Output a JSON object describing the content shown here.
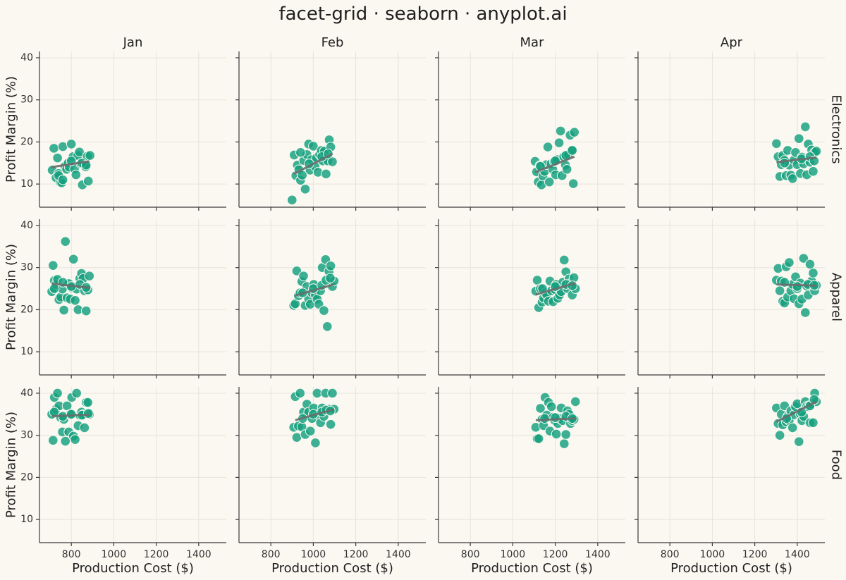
{
  "chart_data": {
    "type": "scatter",
    "title": "facet-grid · seaborn · anyplot.ai",
    "xlabel": "Production Cost ($)",
    "ylabel": "Profit Margin (%)",
    "xlim": [
      650,
      1530
    ],
    "ylim": [
      4.5,
      41.5
    ],
    "xticks": [
      800,
      1000,
      1200,
      1400
    ],
    "yticks": [
      10,
      20,
      30,
      40
    ],
    "grid": true,
    "columns": [
      "Jan",
      "Feb",
      "Mar",
      "Apr"
    ],
    "rows": [
      "Electronics",
      "Apparel",
      "Food"
    ],
    "point_color": "#14A07E",
    "trend_color": "#6B6B6B",
    "background": "#FAF8F1",
    "panels": [
      {
        "row": "Electronics",
        "col": "Jan",
        "x": [
          710,
          718,
          728,
          735,
          740,
          748,
          755,
          760,
          770,
          778,
          785,
          790,
          800,
          808,
          815,
          822,
          830,
          838,
          845,
          852,
          860,
          868,
          875,
          880,
          888,
          740,
          760,
          800,
          850,
          870
        ],
        "y": [
          13.3,
          18.5,
          11.5,
          16.2,
          12.5,
          10.4,
          10.3,
          18.9,
          14.2,
          13.5,
          15.0,
          14.0,
          19.5,
          16.5,
          13.6,
          12.2,
          16.8,
          17.6,
          14.8,
          9.8,
          14.5,
          14.1,
          16.6,
          10.7,
          16.8,
          12.0,
          11.0,
          15.5,
          15.0,
          14.5
        ],
        "trend": [
          [
            705,
            14.0
          ],
          [
            885,
            15.4
          ]
        ]
      },
      {
        "row": "Electronics",
        "col": "Feb",
        "x": [
          900,
          910,
          918,
          925,
          932,
          940,
          948,
          955,
          962,
          970,
          978,
          985,
          992,
          1000,
          1008,
          1015,
          1022,
          1030,
          1038,
          1045,
          1052,
          1060,
          1068,
          1075,
          1082,
          1090,
          940,
          980,
          1040,
          1070
        ],
        "y": [
          6.2,
          16.9,
          12.0,
          14.5,
          13.4,
          10.9,
          12.1,
          15.6,
          8.8,
          17.0,
          19.5,
          13.3,
          15.8,
          19.0,
          14.2,
          16.2,
          12.8,
          17.0,
          18.0,
          15.5,
          17.8,
          12.4,
          15.5,
          20.5,
          18.8,
          15.3,
          17.5,
          14.8,
          16.5,
          17.2
        ],
        "trend": [
          [
            908,
            12.4
          ],
          [
            1090,
            17.2
          ]
        ]
      },
      {
        "row": "Electronics",
        "col": "Mar",
        "x": [
          1105,
          1112,
          1120,
          1128,
          1135,
          1142,
          1150,
          1158,
          1165,
          1172,
          1180,
          1188,
          1195,
          1202,
          1210,
          1218,
          1225,
          1232,
          1240,
          1248,
          1255,
          1262,
          1270,
          1278,
          1285,
          1290,
          1130,
          1200,
          1250,
          1280
        ],
        "y": [
          15.4,
          12.9,
          10.5,
          14.4,
          9.8,
          11.9,
          13.0,
          14.6,
          18.8,
          10.5,
          14.8,
          13.5,
          15.3,
          12.2,
          15.8,
          19.8,
          22.6,
          12.0,
          16.5,
          14.5,
          13.5,
          17.0,
          21.6,
          18.0,
          10.1,
          22.3,
          14.2,
          15.5,
          16.8,
          18.0
        ],
        "trend": [
          [
            1105,
            12.8
          ],
          [
            1290,
            16.5
          ]
        ]
      },
      {
        "row": "Electronics",
        "col": "Apr",
        "x": [
          1302,
          1310,
          1318,
          1325,
          1332,
          1340,
          1348,
          1355,
          1362,
          1370,
          1378,
          1385,
          1392,
          1400,
          1408,
          1415,
          1422,
          1430,
          1438,
          1445,
          1452,
          1460,
          1468,
          1475,
          1482,
          1490,
          1340,
          1420,
          1460,
          1480
        ],
        "y": [
          19.6,
          16.5,
          11.8,
          14.6,
          16.8,
          15.6,
          12.0,
          18.0,
          14.5,
          12.1,
          11.3,
          15.7,
          17.5,
          14.6,
          20.8,
          12.5,
          16.4,
          14.8,
          23.6,
          12.2,
          19.5,
          15.2,
          18.1,
          13.0,
          17.5,
          17.8,
          15.0,
          16.0,
          16.5,
          15.5
        ],
        "trend": [
          [
            1302,
            15.2
          ],
          [
            1490,
            16.3
          ]
        ]
      },
      {
        "row": "Apparel",
        "col": "Jan",
        "x": [
          708,
          714,
          720,
          728,
          735,
          742,
          750,
          758,
          765,
          772,
          780,
          788,
          795,
          802,
          810,
          818,
          825,
          832,
          840,
          848,
          855,
          862,
          870,
          878,
          885,
          720,
          760,
          800,
          840,
          870
        ],
        "y": [
          24.3,
          30.5,
          26.9,
          26.0,
          27.2,
          22.4,
          23.0,
          24.9,
          19.9,
          36.2,
          22.8,
          26.2,
          22.5,
          25.2,
          32.0,
          22.2,
          24.9,
          20.0,
          27.4,
          28.6,
          27.4,
          24.5,
          19.7,
          24.7,
          28.0,
          25.0,
          26.5,
          25.5,
          26.0,
          25.3
        ],
        "trend": [
          [
            708,
            26.2
          ],
          [
            885,
            25.2
          ]
        ]
      },
      {
        "row": "Apparel",
        "col": "Feb",
        "x": [
          908,
          915,
          922,
          930,
          938,
          946,
          954,
          962,
          970,
          978,
          986,
          994,
          1002,
          1010,
          1018,
          1026,
          1034,
          1042,
          1050,
          1058,
          1066,
          1074,
          1082,
          1090,
          1098,
          950,
          1000,
          1040,
          1060,
          1080
        ],
        "y": [
          21.0,
          21.4,
          29.2,
          23.3,
          24.0,
          26.7,
          28.0,
          21.0,
          25.5,
          22.6,
          21.3,
          24.0,
          26.0,
          23.5,
          22.5,
          21.3,
          24.5,
          30.0,
          19.8,
          31.9,
          16.0,
          29.1,
          30.4,
          25.5,
          26.8,
          24.0,
          25.0,
          25.8,
          27.0,
          27.5
        ],
        "trend": [
          [
            912,
            23.3
          ],
          [
            1098,
            26.0
          ]
        ]
      },
      {
        "row": "Apparel",
        "col": "Mar",
        "x": [
          1108,
          1115,
          1122,
          1130,
          1138,
          1145,
          1152,
          1160,
          1168,
          1175,
          1182,
          1190,
          1198,
          1205,
          1212,
          1220,
          1228,
          1235,
          1242,
          1250,
          1258,
          1265,
          1272,
          1280,
          1288,
          1295,
          1140,
          1200,
          1250,
          1280
        ],
        "y": [
          24.4,
          27.0,
          20.5,
          25.0,
          21.8,
          22.8,
          24.0,
          23.5,
          22.0,
          26.8,
          24.5,
          21.9,
          24.8,
          26.0,
          22.7,
          23.5,
          24.3,
          26.5,
          31.8,
          29.0,
          25.0,
          27.3,
          26.2,
          23.5,
          27.6,
          25.0,
          25.0,
          25.5,
          26.0,
          25.7
        ],
        "trend": [
          [
            1108,
            23.6
          ],
          [
            1295,
            26.3
          ]
        ]
      },
      {
        "row": "Apparel",
        "col": "Apr",
        "x": [
          1302,
          1310,
          1318,
          1325,
          1332,
          1340,
          1348,
          1355,
          1362,
          1370,
          1378,
          1385,
          1392,
          1400,
          1408,
          1415,
          1422,
          1430,
          1438,
          1445,
          1452,
          1460,
          1468,
          1475,
          1482,
          1490,
          1340,
          1400,
          1450,
          1480
        ],
        "y": [
          27.0,
          29.8,
          24.5,
          26.8,
          22.0,
          21.6,
          30.2,
          23.0,
          31.2,
          24.5,
          26.0,
          22.6,
          27.8,
          25.0,
          21.4,
          26.3,
          22.5,
          32.2,
          19.3,
          25.6,
          23.5,
          30.8,
          26.8,
          28.7,
          24.5,
          25.8,
          26.5,
          25.5,
          26.0,
          25.8
        ],
        "trend": [
          [
            1302,
            26.0
          ],
          [
            1490,
            25.7
          ]
        ]
      },
      {
        "row": "Food",
        "col": "Jan",
        "x": [
          708,
          714,
          720,
          728,
          735,
          742,
          750,
          758,
          765,
          772,
          780,
          788,
          795,
          802,
          810,
          818,
          825,
          832,
          840,
          848,
          855,
          862,
          870,
          878,
          885,
          720,
          760,
          800,
          850,
          880
        ],
        "y": [
          35.0,
          28.8,
          39.0,
          36.2,
          40.0,
          37.0,
          34.2,
          30.8,
          33.8,
          28.6,
          37.0,
          30.8,
          35.0,
          39.0,
          29.8,
          29.0,
          40.0,
          32.3,
          34.8,
          35.5,
          34.9,
          31.8,
          37.8,
          37.8,
          35.0,
          35.5,
          34.5,
          35.0,
          34.8,
          35.2
        ],
        "trend": [
          [
            708,
            34.5
          ],
          [
            885,
            34.9
          ]
        ]
      },
      {
        "row": "Food",
        "col": "Feb",
        "x": [
          908,
          915,
          922,
          930,
          938,
          946,
          954,
          962,
          970,
          978,
          986,
          994,
          1002,
          1010,
          1018,
          1026,
          1034,
          1042,
          1050,
          1058,
          1066,
          1074,
          1082,
          1090,
          1098,
          950,
          1000,
          1040,
          1060,
          1080
        ],
        "y": [
          31.9,
          39.2,
          29.5,
          32.2,
          40.0,
          32.0,
          35.5,
          30.2,
          37.4,
          35.5,
          31.0,
          34.0,
          36.5,
          28.2,
          40.0,
          34.9,
          33.0,
          36.5,
          34.5,
          40.0,
          36.0,
          36.2,
          32.6,
          40.0,
          36.2,
          34.0,
          35.0,
          35.5,
          36.0,
          35.8
        ],
        "trend": [
          [
            915,
            33.6
          ],
          [
            1098,
            36.2
          ]
        ]
      },
      {
        "row": "Food",
        "col": "Mar",
        "x": [
          1108,
          1115,
          1122,
          1130,
          1138,
          1145,
          1152,
          1160,
          1168,
          1175,
          1182,
          1190,
          1198,
          1205,
          1212,
          1220,
          1228,
          1235,
          1242,
          1250,
          1258,
          1265,
          1272,
          1280,
          1288,
          1295,
          1150,
          1200,
          1250,
          1280
        ],
        "y": [
          31.9,
          29.2,
          29.2,
          36.4,
          33.8,
          32.3,
          39.0,
          34.8,
          37.8,
          31.0,
          36.8,
          34.3,
          33.5,
          30.3,
          32.8,
          34.0,
          36.5,
          33.5,
          28.0,
          30.2,
          35.8,
          35.0,
          32.8,
          33.5,
          33.8,
          38.0,
          34.0,
          34.2,
          34.5,
          34.0
        ],
        "trend": [
          [
            1108,
            33.6
          ],
          [
            1295,
            34.0
          ]
        ]
      },
      {
        "row": "Food",
        "col": "Apr",
        "x": [
          1302,
          1310,
          1318,
          1325,
          1332,
          1340,
          1348,
          1355,
          1362,
          1370,
          1378,
          1385,
          1392,
          1400,
          1408,
          1415,
          1422,
          1430,
          1438,
          1445,
          1452,
          1460,
          1468,
          1475,
          1482,
          1490,
          1350,
          1420,
          1460,
          1480
        ],
        "y": [
          36.5,
          32.8,
          30.0,
          35.0,
          32.5,
          37.0,
          33.2,
          34.5,
          33.5,
          35.8,
          31.8,
          34.9,
          36.8,
          37.5,
          28.5,
          35.0,
          33.5,
          34.5,
          38.0,
          36.9,
          36.8,
          33.0,
          37.5,
          33.0,
          40.0,
          38.0,
          34.0,
          35.5,
          37.0,
          38.5
        ],
        "trend": [
          [
            1302,
            33.2
          ],
          [
            1490,
            38.0
          ]
        ]
      }
    ]
  }
}
